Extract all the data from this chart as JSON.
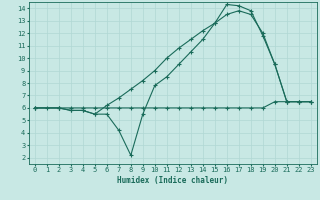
{
  "xlabel": "Humidex (Indice chaleur)",
  "xlim": [
    -0.5,
    23.5
  ],
  "ylim": [
    1.5,
    14.5
  ],
  "yticks": [
    2,
    3,
    4,
    5,
    6,
    7,
    8,
    9,
    10,
    11,
    12,
    13,
    14
  ],
  "xticks": [
    0,
    1,
    2,
    3,
    4,
    5,
    6,
    7,
    8,
    9,
    10,
    11,
    12,
    13,
    14,
    15,
    16,
    17,
    18,
    19,
    20,
    21,
    22,
    23
  ],
  "bg_color": "#c8e8e4",
  "line_color": "#1a6b5a",
  "grid_color": "#b0d8d4",
  "line1_x": [
    0,
    1,
    2,
    3,
    4,
    5,
    6,
    7,
    8,
    9,
    10,
    11,
    12,
    13,
    14,
    15,
    16,
    17,
    18,
    19,
    20,
    21,
    22,
    23
  ],
  "line1_y": [
    6,
    6,
    6,
    6,
    6,
    6,
    6,
    6,
    6,
    6,
    6,
    6,
    6,
    6,
    6,
    6,
    6,
    6,
    6,
    6,
    6.5,
    6.5,
    6.5,
    6.5
  ],
  "line2_x": [
    0,
    2,
    3,
    4,
    5,
    6,
    7,
    8,
    9,
    10,
    11,
    12,
    13,
    14,
    15,
    16,
    17,
    18,
    19,
    20,
    21,
    22,
    23
  ],
  "line2_y": [
    6,
    6,
    5.8,
    5.8,
    5.5,
    5.5,
    4.2,
    2.2,
    5.5,
    7.8,
    8.5,
    9.5,
    10.5,
    11.5,
    12.8,
    14.3,
    14.2,
    13.8,
    11.8,
    9.5,
    6.5,
    6.5,
    6.5
  ],
  "line3_x": [
    0,
    2,
    3,
    4,
    5,
    6,
    7,
    8,
    9,
    10,
    11,
    12,
    13,
    14,
    15,
    16,
    17,
    18,
    19,
    20,
    21,
    22,
    23
  ],
  "line3_y": [
    6,
    6,
    5.8,
    5.8,
    5.5,
    6.2,
    6.8,
    7.5,
    8.2,
    9.0,
    10.0,
    10.8,
    11.5,
    12.2,
    12.8,
    13.5,
    13.8,
    13.5,
    12.0,
    9.5,
    6.5,
    6.5,
    6.5
  ]
}
